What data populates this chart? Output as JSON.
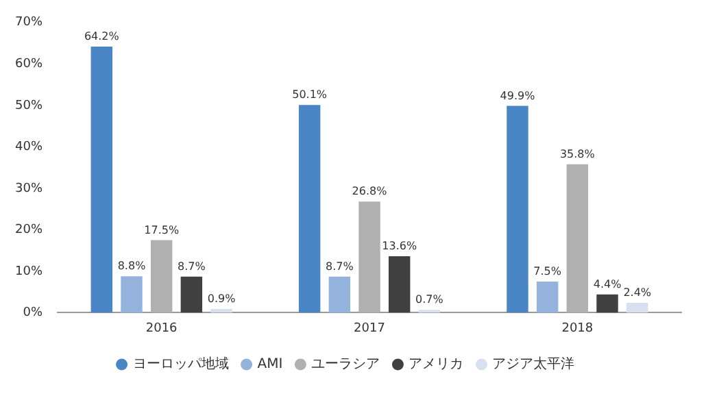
{
  "chart_data": {
    "type": "bar",
    "categories": [
      "2016",
      "2017",
      "2018"
    ],
    "series": [
      {
        "name": "ヨーロッパ地域",
        "color": "#4a86c5",
        "values": [
          64.2,
          50.1,
          49.9
        ],
        "value_labels": [
          "64.2%",
          "50.1%",
          "49.9%"
        ]
      },
      {
        "name": "AMI",
        "color": "#94b3dc",
        "values": [
          8.8,
          8.7,
          7.5
        ],
        "value_labels": [
          "8.8%",
          "8.7%",
          "7.5%"
        ]
      },
      {
        "name": "ユーラシア",
        "color": "#b0b0b0",
        "values": [
          17.5,
          26.8,
          35.8
        ],
        "value_labels": [
          "17.5%",
          "26.8%",
          "35.8%"
        ]
      },
      {
        "name": "アメリカ",
        "color": "#404040",
        "values": [
          8.7,
          13.6,
          4.4
        ],
        "value_labels": [
          "8.7%",
          "13.6%",
          "4.4%"
        ]
      },
      {
        "name": "アジア太平洋",
        "color": "#d6e0ee",
        "values": [
          0.9,
          0.7,
          2.4
        ],
        "value_labels": [
          "0.9%",
          "0.7%",
          "2.4%"
        ]
      }
    ],
    "ylim": [
      0,
      70
    ],
    "yticks": [
      {
        "value": 0,
        "label": "0%"
      },
      {
        "value": 10,
        "label": "10%"
      },
      {
        "value": 20,
        "label": "20%"
      },
      {
        "value": 30,
        "label": "30%"
      },
      {
        "value": 40,
        "label": "40%"
      },
      {
        "value": 50,
        "label": "50%"
      },
      {
        "value": 60,
        "label": "60%"
      },
      {
        "value": 70,
        "label": "70%"
      }
    ],
    "grid": false,
    "legend": "bottom"
  }
}
